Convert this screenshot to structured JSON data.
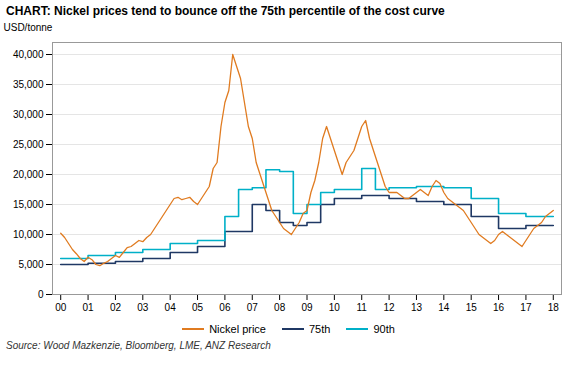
{
  "chart_data": {
    "type": "line",
    "title": "CHART: Nickel prices tend to bounce off the 75th percentile of the cost curve",
    "ylabel": "USD/tonne",
    "source": "Source: Wood Mazkenzie, Bloomberg, LME, ANZ Research",
    "xlim": [
      -0.3,
      18.3
    ],
    "xticks": [
      {
        "value": 0,
        "label": "00"
      },
      {
        "value": 1,
        "label": "01"
      },
      {
        "value": 2,
        "label": "02"
      },
      {
        "value": 3,
        "label": "03"
      },
      {
        "value": 4,
        "label": "04"
      },
      {
        "value": 5,
        "label": "05"
      },
      {
        "value": 6,
        "label": "06"
      },
      {
        "value": 7,
        "label": "07"
      },
      {
        "value": 8,
        "label": "08"
      },
      {
        "value": 9,
        "label": "09"
      },
      10,
      11,
      12,
      13,
      14,
      15,
      16,
      17,
      18
    ],
    "ylim": [
      0,
      42000
    ],
    "yticks": [
      0,
      {
        "value": 5000,
        "label": "5,000"
      },
      {
        "value": 10000,
        "label": "10,000"
      },
      {
        "value": 15000,
        "label": "15,000"
      },
      {
        "value": 20000,
        "label": "20,000"
      },
      {
        "value": 25000,
        "label": "25,000"
      },
      {
        "value": 30000,
        "label": "30,000"
      },
      {
        "value": 35000,
        "label": "35,000"
      },
      {
        "value": 40000,
        "label": "40,000"
      }
    ],
    "grid": true,
    "legend": "bottom",
    "series": [
      {
        "name": "Nickel price",
        "color": "#E07B20",
        "x": [
          0,
          0.142857,
          0.285714,
          0.428571,
          0.571429,
          0.714286,
          0.857143,
          1,
          1.142857,
          1.285714,
          1.428571,
          1.571429,
          1.714286,
          1.857143,
          2,
          2.142857,
          2.285714,
          2.428571,
          2.571429,
          2.714286,
          2.857143,
          3,
          3.142857,
          3.285714,
          3.428571,
          3.571429,
          3.714286,
          3.857143,
          4,
          4.142857,
          4.285714,
          4.428571,
          4.571429,
          4.714286,
          4.857143,
          5,
          5.142857,
          5.285714,
          5.428571,
          5.571429,
          5.714286,
          5.857143,
          6,
          6.142857,
          6.285714,
          6.428571,
          6.571429,
          6.714286,
          6.857143,
          7,
          7.142857,
          7.285714,
          7.428571,
          7.571429,
          7.714286,
          7.857143,
          8,
          8.142857,
          8.285714,
          8.428571,
          8.571429,
          8.714286,
          8.857143,
          9,
          9.142857,
          9.285714,
          9.428571,
          9.571429,
          9.714286,
          9.857143,
          10,
          10.142857,
          10.285714,
          10.428571,
          10.571429,
          10.714286,
          10.857143,
          11,
          11.142857,
          11.285714,
          11.428571,
          11.571429,
          11.714286,
          11.857143,
          12,
          12.142857,
          12.285714,
          12.428571,
          12.571429,
          12.714286,
          12.857143,
          13,
          13.142857,
          13.285714,
          13.428571,
          13.571429,
          13.714286,
          13.857143,
          14,
          14.142857,
          14.285714,
          14.428571,
          14.571429,
          14.714286,
          14.857143,
          15,
          15.142857,
          15.285714,
          15.428571,
          15.571429,
          15.714286,
          15.857143,
          16,
          16.142857,
          16.285714,
          16.428571,
          16.571429,
          16.714286,
          16.857143,
          17,
          17.142857,
          17.285714,
          17.428571,
          17.571429,
          17.714286,
          17.857143,
          18
        ],
        "values": [
          10200,
          9500,
          8500,
          7500,
          6800,
          6000,
          5500,
          6200,
          5800,
          5000,
          4800,
          5200,
          5500,
          6000,
          6500,
          6200,
          7000,
          7800,
          8000,
          8500,
          9000,
          8800,
          9500,
          10000,
          11000,
          12000,
          13000,
          14000,
          15000,
          16000,
          16200,
          15800,
          16000,
          16200,
          15500,
          15000,
          16000,
          17000,
          18000,
          21000,
          22000,
          28000,
          32000,
          34000,
          40000,
          38000,
          36000,
          32000,
          28000,
          26000,
          22000,
          20000,
          18000,
          16000,
          14000,
          13000,
          12000,
          11000,
          10500,
          10000,
          11000,
          12000,
          13500,
          14000,
          17000,
          19000,
          22000,
          26000,
          28000,
          26000,
          24000,
          22000,
          20000,
          22000,
          23000,
          24000,
          26000,
          28000,
          29000,
          26000,
          24000,
          22000,
          20000,
          18000,
          17000,
          17000,
          17000,
          16500,
          16000,
          16000,
          16500,
          17000,
          17500,
          17000,
          16500,
          18000,
          19000,
          18500,
          17000,
          16000,
          15500,
          15000,
          14500,
          14000,
          13000,
          12000,
          11000,
          10000,
          9500,
          9000,
          8500,
          9000,
          10000,
          10500,
          10000,
          9500,
          9000,
          8500,
          8000,
          9000,
          10000,
          11000,
          11500,
          12000,
          13000,
          13500,
          14000
        ]
      },
      {
        "name": "75th",
        "color": "#1F3864",
        "x": [
          0,
          1,
          1,
          2,
          2,
          3,
          3,
          4,
          4,
          5,
          5,
          6,
          6,
          7,
          7,
          7.5,
          7.5,
          8,
          8,
          8.5,
          8.5,
          9,
          9,
          9.5,
          9.5,
          10,
          10,
          11,
          11,
          12,
          12,
          13,
          13,
          14,
          14,
          15,
          15,
          16,
          16,
          17,
          17,
          18
        ],
        "values": [
          5000,
          5000,
          5200,
          5200,
          5500,
          5500,
          6000,
          6000,
          7000,
          7000,
          8000,
          8000,
          10500,
          10500,
          15000,
          15000,
          14000,
          14000,
          12000,
          12000,
          11500,
          11500,
          12000,
          12000,
          15000,
          15000,
          16000,
          16000,
          16500,
          16500,
          16000,
          16000,
          15500,
          15500,
          15000,
          15000,
          13000,
          13000,
          11000,
          11000,
          11500,
          11500
        ]
      },
      {
        "name": "90th",
        "color": "#00B0C8",
        "x": [
          0,
          1,
          1,
          2,
          2,
          3,
          3,
          4,
          4,
          5,
          5,
          6,
          6,
          6.5,
          6.5,
          7,
          7,
          7.5,
          7.5,
          8,
          8,
          8.5,
          8.5,
          9,
          9,
          9.5,
          9.5,
          10,
          10,
          11,
          11,
          11.5,
          11.5,
          12,
          12,
          13,
          13,
          14,
          14,
          15,
          15,
          16,
          16,
          17,
          17,
          18
        ],
        "values": [
          6000,
          6000,
          6500,
          6500,
          7000,
          7000,
          7500,
          7500,
          8500,
          8500,
          9000,
          9000,
          13000,
          13000,
          17500,
          17500,
          17800,
          17800,
          20800,
          20800,
          20500,
          20500,
          13500,
          13500,
          15000,
          15000,
          17000,
          17000,
          17500,
          17500,
          21000,
          21000,
          17500,
          17500,
          17800,
          17800,
          18000,
          18000,
          17800,
          17800,
          16000,
          16000,
          13500,
          13500,
          13000,
          13000
        ]
      }
    ]
  }
}
